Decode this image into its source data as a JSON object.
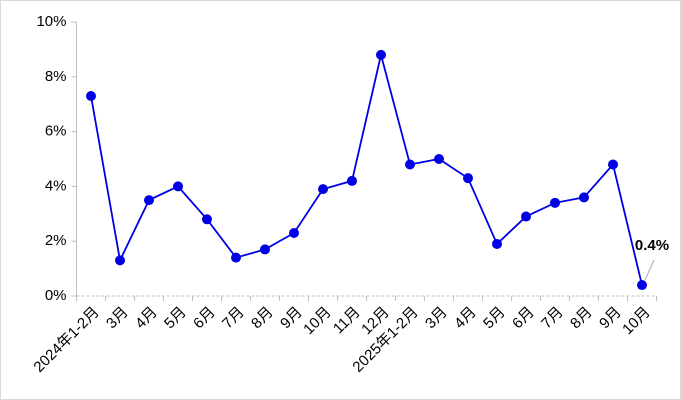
{
  "chart_data": {
    "type": "line",
    "categories": [
      "2024年1-2月",
      "3月",
      "4月",
      "5月",
      "6月",
      "7月",
      "8月",
      "9月",
      "10月",
      "11月",
      "12月",
      "2025年1-2月",
      "3月",
      "4月",
      "5月",
      "6月",
      "7月",
      "8月",
      "9月",
      "10月"
    ],
    "series": [
      {
        "color": "#0000e6",
        "values": [
          7.3,
          1.3,
          3.5,
          4.0,
          2.8,
          1.4,
          1.7,
          2.3,
          3.9,
          4.2,
          8.8,
          4.8,
          5.0,
          4.3,
          1.9,
          2.9,
          3.4,
          3.6,
          4.8,
          0.4
        ],
        "value_labels": [
          null,
          null,
          null,
          null,
          null,
          null,
          null,
          null,
          null,
          null,
          null,
          null,
          null,
          null,
          null,
          null,
          null,
          null,
          null,
          "0.4%"
        ]
      }
    ],
    "ylim": [
      0,
      10
    ],
    "yticks": [
      {
        "value": 0,
        "label": "0%"
      },
      {
        "value": 2,
        "label": "2%"
      },
      {
        "value": 4,
        "label": "4%"
      },
      {
        "value": 6,
        "label": "6%"
      },
      {
        "value": 8,
        "label": "8%"
      },
      {
        "value": 10,
        "label": "10%"
      }
    ],
    "grid": false
  }
}
